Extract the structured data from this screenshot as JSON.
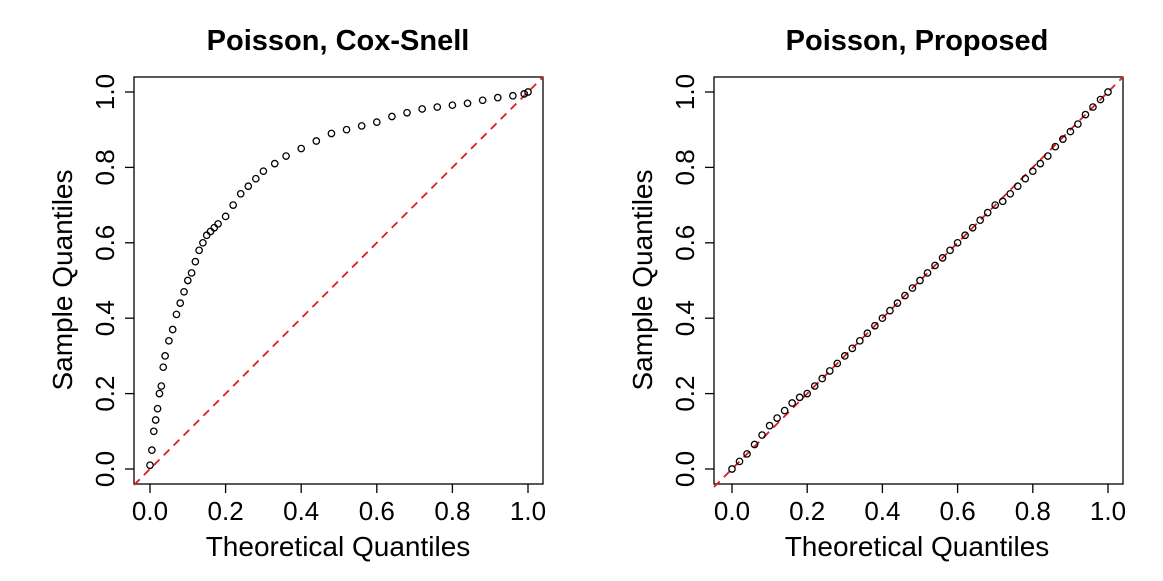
{
  "figure": {
    "panels": [
      {
        "title": "Poisson, Cox-Snell"
      },
      {
        "title": "Poisson, Proposed"
      }
    ]
  },
  "colors": {
    "points": "#000000",
    "reference_line": "#e41a1c",
    "axes": "#000000"
  },
  "chart_data": [
    {
      "type": "scatter",
      "title": "Poisson, Cox-Snell",
      "xlabel": "Theoretical Quantiles",
      "ylabel": "Sample Quantiles",
      "xlim": [
        0.0,
        1.0
      ],
      "ylim": [
        0.0,
        1.0
      ],
      "x_ticks": [
        "0.0",
        "0.2",
        "0.4",
        "0.6",
        "0.8",
        "1.0"
      ],
      "y_ticks": [
        "0.0",
        "0.2",
        "0.4",
        "0.6",
        "0.8",
        "1.0"
      ],
      "reference_line": {
        "style": "dashed",
        "from": [
          0,
          0
        ],
        "to": [
          1,
          1
        ]
      },
      "series": [
        {
          "name": "qq-points",
          "marker": "open-circle",
          "x": [
            0.0,
            0.005,
            0.01,
            0.015,
            0.02,
            0.025,
            0.03,
            0.035,
            0.04,
            0.05,
            0.06,
            0.07,
            0.08,
            0.09,
            0.1,
            0.11,
            0.12,
            0.13,
            0.14,
            0.15,
            0.16,
            0.17,
            0.18,
            0.2,
            0.22,
            0.24,
            0.26,
            0.28,
            0.3,
            0.33,
            0.36,
            0.4,
            0.44,
            0.48,
            0.52,
            0.56,
            0.6,
            0.64,
            0.68,
            0.72,
            0.76,
            0.8,
            0.84,
            0.88,
            0.92,
            0.96,
            0.99,
            1.0
          ],
          "y": [
            0.01,
            0.05,
            0.1,
            0.13,
            0.16,
            0.2,
            0.22,
            0.27,
            0.3,
            0.34,
            0.37,
            0.41,
            0.44,
            0.47,
            0.5,
            0.52,
            0.55,
            0.58,
            0.6,
            0.62,
            0.63,
            0.64,
            0.65,
            0.67,
            0.7,
            0.73,
            0.75,
            0.77,
            0.79,
            0.81,
            0.83,
            0.85,
            0.87,
            0.89,
            0.9,
            0.91,
            0.92,
            0.935,
            0.945,
            0.955,
            0.96,
            0.965,
            0.97,
            0.978,
            0.985,
            0.99,
            0.995,
            1.0
          ]
        }
      ]
    },
    {
      "type": "scatter",
      "title": "Poisson, Proposed",
      "xlabel": "Theoretical Quantiles",
      "ylabel": "Sample Quantiles",
      "xlim": [
        0.0,
        1.0
      ],
      "ylim": [
        0.0,
        1.0
      ],
      "x_ticks": [
        "0.0",
        "0.2",
        "0.4",
        "0.6",
        "0.8",
        "1.0"
      ],
      "y_ticks": [
        "0.0",
        "0.2",
        "0.4",
        "0.6",
        "0.8",
        "1.0"
      ],
      "reference_line": {
        "style": "dashed",
        "from": [
          0,
          0
        ],
        "to": [
          1,
          1
        ]
      },
      "series": [
        {
          "name": "qq-points",
          "marker": "open-circle",
          "x": [
            0.0,
            0.02,
            0.04,
            0.06,
            0.08,
            0.1,
            0.12,
            0.14,
            0.16,
            0.18,
            0.2,
            0.22,
            0.24,
            0.26,
            0.28,
            0.3,
            0.32,
            0.34,
            0.36,
            0.38,
            0.4,
            0.42,
            0.44,
            0.46,
            0.48,
            0.5,
            0.52,
            0.54,
            0.56,
            0.58,
            0.6,
            0.62,
            0.64,
            0.66,
            0.68,
            0.7,
            0.72,
            0.74,
            0.76,
            0.78,
            0.8,
            0.82,
            0.84,
            0.86,
            0.88,
            0.9,
            0.92,
            0.94,
            0.96,
            0.98,
            1.0
          ],
          "y": [
            0.0,
            0.02,
            0.04,
            0.065,
            0.09,
            0.115,
            0.135,
            0.155,
            0.175,
            0.19,
            0.2,
            0.22,
            0.24,
            0.26,
            0.28,
            0.3,
            0.32,
            0.34,
            0.36,
            0.38,
            0.4,
            0.42,
            0.44,
            0.46,
            0.48,
            0.5,
            0.52,
            0.54,
            0.56,
            0.58,
            0.6,
            0.62,
            0.64,
            0.66,
            0.68,
            0.7,
            0.71,
            0.73,
            0.75,
            0.77,
            0.79,
            0.81,
            0.83,
            0.855,
            0.875,
            0.895,
            0.915,
            0.94,
            0.96,
            0.98,
            1.0
          ]
        }
      ]
    }
  ]
}
